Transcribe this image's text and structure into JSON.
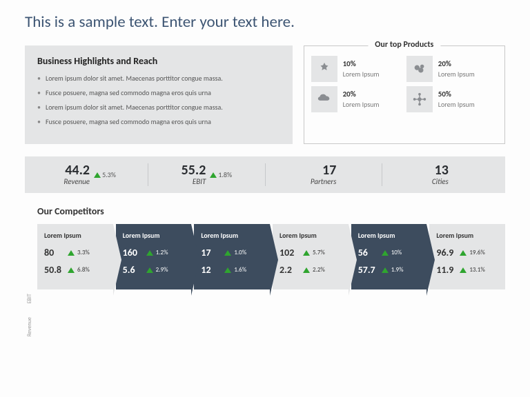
{
  "title": "This is a sample text. Enter your text here.",
  "highlights": {
    "heading": "Business Highlights  and Reach",
    "bullets": [
      "Lorem ipsum dolor sit amet. Maecenas porttitor congue massa.",
      "Fusce posuere, magna sed commodo magna eros quis urna",
      "Lorem ipsum dolor sit amet. Maecenas porttitor congue massa.",
      "Fusce posuere, magna sed commodo magna eros quis urna"
    ]
  },
  "products": {
    "heading": "Our top Products",
    "items": [
      {
        "pct": "10%",
        "desc": "Lorem Ipsum"
      },
      {
        "pct": "20%",
        "desc": "Lorem Ipsum"
      },
      {
        "pct": "20%",
        "desc": "Lorem Ipsum"
      },
      {
        "pct": "50%",
        "desc": "Lorem Ipsum"
      }
    ]
  },
  "kpis": [
    {
      "value": "44.2",
      "label": "Revenue",
      "delta": "5.3%",
      "has_delta": true
    },
    {
      "value": "55.2",
      "label": "EBIT",
      "delta": "1.8%",
      "has_delta": true
    },
    {
      "value": "17",
      "label": "Partners",
      "delta": "",
      "has_delta": false
    },
    {
      "value": "13",
      "label": "Cities",
      "delta": "",
      "has_delta": false
    }
  ],
  "competitors": {
    "heading": "Our Competitors",
    "axis": {
      "top": "Revenue",
      "bottom": "EBIT"
    },
    "cards": [
      {
        "name": "Lorem Ipsum",
        "dark": false,
        "rev": "80",
        "rev_pct": "3.3%",
        "ebit": "50.8",
        "ebit_pct": "6.8%"
      },
      {
        "name": "Lorem Ipsum",
        "dark": true,
        "rev": "160",
        "rev_pct": "1.2%",
        "ebit": "5.6",
        "ebit_pct": "2.9%"
      },
      {
        "name": "Lorem Ipsum",
        "dark": true,
        "rev": "17",
        "rev_pct": "1.0%",
        "ebit": "12",
        "ebit_pct": "1.6%"
      },
      {
        "name": "Lorem Ipsum",
        "dark": false,
        "rev": "102",
        "rev_pct": "5.7%",
        "ebit": "2.2",
        "ebit_pct": "2.2%"
      },
      {
        "name": "Lorem Ipsum",
        "dark": true,
        "rev": "56",
        "rev_pct": "10%",
        "ebit": "57.7",
        "ebit_pct": "1.9%"
      },
      {
        "name": "Lorem Ipsum",
        "dark": false,
        "rev": "96.9",
        "rev_pct": "19.6%",
        "ebit": "11.9",
        "ebit_pct": "13.1%"
      }
    ]
  },
  "colors": {
    "accent_dark": "#3d4c5e",
    "panel_grey": "#e4e5e6",
    "up_green": "#2fa52f",
    "title_blue": "#3d5573"
  }
}
